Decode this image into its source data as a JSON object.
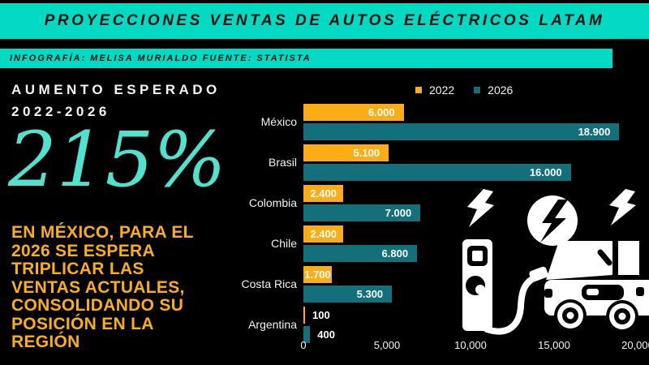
{
  "header": {
    "title": "PROYECCIONES VENTAS DE AUTOS ELÉCTRICOS LATAM"
  },
  "subheader": {
    "text": "INFOGRAFÍA: MELISA MURIALDO FUENTE: STATISTA"
  },
  "left_panel": {
    "heading": "AUMENTO ESPERADO\n2022-2026",
    "big_stat": "215%",
    "body": "EN MÉXICO, PARA EL\n2026 SE ESPERA\nTRIPLICAR LAS\nVENTAS ACTUALES,\nCONSOLIDANDO SU\nPOSICIÓN EN LA\nREGIÓN"
  },
  "chart_data": {
    "type": "bar",
    "orientation": "horizontal",
    "title": "",
    "categories": [
      "México",
      "Brasil",
      "Colombia",
      "Chile",
      "Costa Rica",
      "Argentina"
    ],
    "series": [
      {
        "name": "2022",
        "color": "#FBAD18",
        "values": [
          6000,
          5100,
          2400,
          2400,
          1700,
          100
        ],
        "labels": [
          "6.000",
          "5.100",
          "2.400",
          "2.400",
          "1.700",
          "100"
        ]
      },
      {
        "name": "2026",
        "color": "#136F79",
        "values": [
          18900,
          16000,
          7000,
          6800,
          5300,
          400
        ],
        "labels": [
          "18.900",
          "16.000",
          "7.000",
          "6.800",
          "5.300",
          "400"
        ]
      }
    ],
    "xlim": [
      0,
      20000
    ],
    "tick_values": [
      0,
      5000,
      10000,
      15000,
      20000
    ],
    "x_ticks": [
      "0",
      "5,000",
      "10,000",
      "15,000",
      "20,000"
    ],
    "legend_position": "top",
    "grid": false
  },
  "colors": {
    "background": "#000000",
    "banner_teal": "#04D9C4",
    "stat_teal": "#4FE3CF",
    "accent_orange": "#FBAF17",
    "bar_2022": "#FBAD18",
    "bar_2026": "#136F79",
    "text_light": "#F2F2F2",
    "text_dark": "#0B0F0E"
  },
  "icons": [
    "lightning-bolt-icon",
    "lightning-bolt-circle-icon",
    "lightning-bolt-icon",
    "ev-charging-station-icon",
    "charging-cable-icon",
    "electric-car-icon"
  ]
}
